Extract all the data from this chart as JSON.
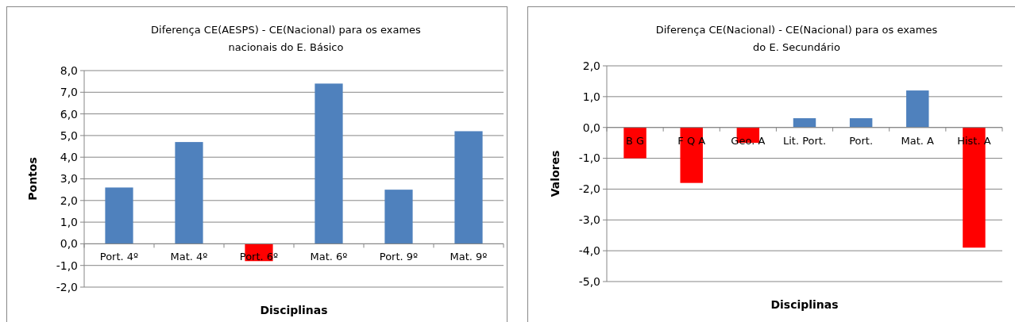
{
  "chart_data": [
    {
      "type": "bar",
      "title": "Diferença CE(AESPS)  - CE(Nacional)  para os exames nacionais  do E. Básico",
      "xlabel": "Disciplinas",
      "ylabel": "Pontos",
      "categories": [
        "Port. 4º",
        "Mat. 4º",
        "Port. 6º",
        "Mat. 6º",
        "Port. 9º",
        "Mat. 9º"
      ],
      "values": [
        2.6,
        4.7,
        -0.8,
        7.4,
        2.5,
        5.2
      ],
      "colors": [
        "#4f81bd",
        "#4f81bd",
        "#ff0000",
        "#4f81bd",
        "#4f81bd",
        "#4f81bd"
      ],
      "ylim": [
        -2,
        8
      ],
      "yticks": [
        {
          "value": -2,
          "label": "-2,0"
        },
        {
          "value": -1,
          "label": "-1,0"
        },
        {
          "value": 0,
          "label": "0,0"
        },
        {
          "value": 1,
          "label": "1,0"
        },
        {
          "value": 2,
          "label": "2,0"
        },
        {
          "value": 3,
          "label": "3,0"
        },
        {
          "value": 4,
          "label": "4,0"
        },
        {
          "value": 5,
          "label": "5,0"
        },
        {
          "value": 6,
          "label": "6,0"
        },
        {
          "value": 7,
          "label": "7,0"
        },
        {
          "value": 8,
          "label": "8,0"
        }
      ],
      "grid": "y",
      "legend": false
    },
    {
      "type": "bar",
      "title": "Diferença CE(Nacional)  - CE(Nacional)  para os exames do E. Secundário",
      "xlabel": "Disciplinas",
      "ylabel": "Valores",
      "categories": [
        "B G",
        "F Q A",
        "Geo. A",
        "Lit. Port.",
        "Port.",
        "Mat. A",
        "Hist. A"
      ],
      "values": [
        -1.0,
        -1.8,
        -0.5,
        0.3,
        0.3,
        1.2,
        -3.9
      ],
      "colors": [
        "#ff0000",
        "#ff0000",
        "#ff0000",
        "#4f81bd",
        "#4f81bd",
        "#4f81bd",
        "#ff0000"
      ],
      "ylim": [
        -5,
        2
      ],
      "yticks": [
        {
          "value": -5,
          "label": "-5,0"
        },
        {
          "value": -4,
          "label": "-4,0"
        },
        {
          "value": -3,
          "label": "-3,0"
        },
        {
          "value": -2,
          "label": "-2,0"
        },
        {
          "value": -1,
          "label": "-1,0"
        },
        {
          "value": 0,
          "label": "0,0"
        },
        {
          "value": 1,
          "label": "1,0"
        },
        {
          "value": 2,
          "label": "2,0"
        }
      ],
      "grid": "y",
      "legend": false
    }
  ]
}
